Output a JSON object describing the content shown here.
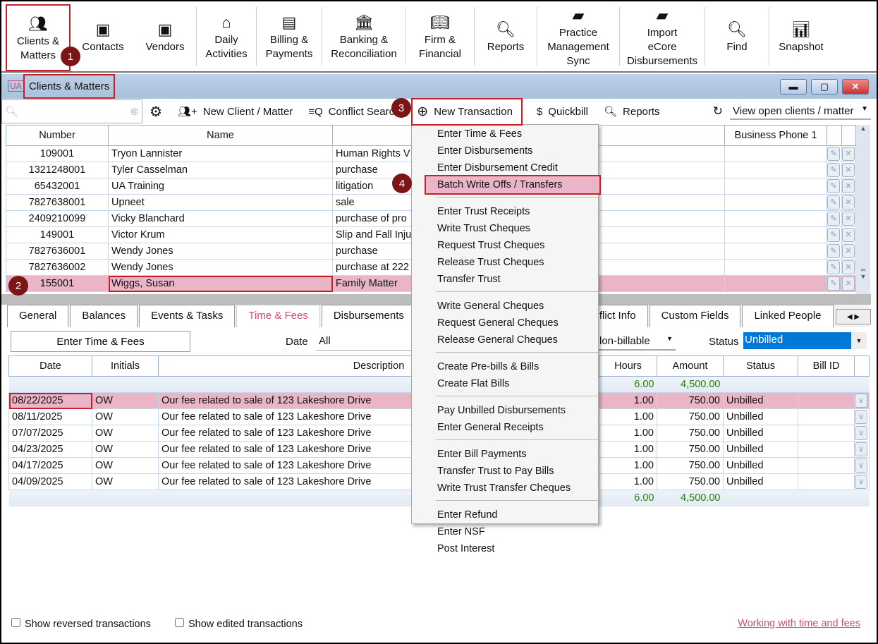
{
  "toolbar": {
    "items": [
      {
        "label": "Clients &\nMatters",
        "icon": "clients-icon"
      },
      {
        "label": "Contacts",
        "icon": "contacts-icon"
      },
      {
        "label": "Vendors",
        "icon": "vendors-icon"
      },
      {
        "label": "Daily\nActivities",
        "icon": "home-icon"
      },
      {
        "label": "Billing &\nPayments",
        "icon": "money-icon"
      },
      {
        "label": "Banking &\nReconciliation",
        "icon": "bank-icon"
      },
      {
        "label": "Firm &\nFinancial",
        "icon": "book-icon"
      },
      {
        "label": "Reports",
        "icon": "report-icon"
      },
      {
        "label": "Practice\nManagement\nSync",
        "icon": "dye-durham-logo"
      },
      {
        "label": "Import\neCore\nDisbursements",
        "icon": "dye-durham-logo"
      },
      {
        "label": "Find",
        "icon": "search-icon"
      },
      {
        "label": "Snapshot",
        "icon": "chart-icon"
      }
    ]
  },
  "window": {
    "title": "Clients & Matters"
  },
  "subtoolbar": {
    "search_placeholder": "",
    "new_client": "New Client / Matter",
    "conflict": "Conflict Search",
    "new_transaction": "New Transaction",
    "quickbill": "Quickbill",
    "reports": "Reports",
    "view": "View open clients / matter"
  },
  "clients": {
    "columns": [
      "Number",
      "Name",
      "",
      "Business Phone 1"
    ],
    "rows": [
      {
        "number": "109001",
        "name": "Tryon Lannister",
        "desc": "Human Rights V"
      },
      {
        "number": "1321248001",
        "name": "Tyler Casselman",
        "desc": "purchase"
      },
      {
        "number": "65432001",
        "name": "UA Training",
        "desc": "litigation"
      },
      {
        "number": "7827638001",
        "name": "Upneet",
        "desc": "sale"
      },
      {
        "number": "2409210099",
        "name": "Vicky Blanchard",
        "desc": "purchase of pro"
      },
      {
        "number": "149001",
        "name": "Victor Krum",
        "desc": "Slip and Fall Inju"
      },
      {
        "number": "7827636001",
        "name": "Wendy Jones",
        "desc": "purchase"
      },
      {
        "number": "7827636002",
        "name": "Wendy Jones",
        "desc": "purchase at 222"
      },
      {
        "number": "155001",
        "name": "Wiggs, Susan",
        "desc": "Family Matter"
      }
    ]
  },
  "menu": {
    "groups": [
      [
        "Enter Time & Fees",
        "Enter Disbursements",
        "Enter Disbursement Credit",
        "Batch Write Offs / Transfers"
      ],
      [
        "Enter Trust Receipts",
        "Write Trust Cheques",
        "Request Trust Cheques",
        "Release Trust Cheques",
        "Transfer Trust"
      ],
      [
        "Write General Cheques",
        "Request General Cheques",
        "Release General Cheques"
      ],
      [
        "Create Pre-bills & Bills",
        "Create Flat Bills"
      ],
      [
        "Pay Unbilled Disbursements",
        "Enter General Receipts"
      ],
      [
        "Enter Bill Payments",
        "Transfer Trust to Pay Bills",
        "Write Trust Transfer Cheques"
      ],
      [
        "Enter Refund",
        "Enter NSF",
        "Post Interest"
      ]
    ]
  },
  "tabs": [
    "General",
    "Balances",
    "Events & Tasks",
    "Time & Fees",
    "Disbursements",
    "flict Info",
    "Custom Fields",
    "Linked People"
  ],
  "filters": {
    "enter_button": "Enter Time & Fees",
    "date_label": "Date",
    "date_value": "All",
    "billable_value": "lon-billable",
    "status_label": "Status",
    "status_value": "Unbilled"
  },
  "fees": {
    "columns": [
      "Date",
      "Initials",
      "Description",
      "Hours",
      "Amount",
      "Status",
      "Bill ID"
    ],
    "total_hours": "6.00",
    "total_amount": "4,500.00",
    "rows": [
      {
        "date": "08/22/2025",
        "initials": "OW",
        "desc": "Our fee related to sale of 123 Lakeshore Drive",
        "hours": "1.00",
        "amount": "750.00",
        "status": "Unbilled"
      },
      {
        "date": "08/11/2025",
        "initials": "OW",
        "desc": "Our fee related to sale of 123 Lakeshore Drive",
        "hours": "1.00",
        "amount": "750.00",
        "status": "Unbilled"
      },
      {
        "date": "07/07/2025",
        "initials": "OW",
        "desc": "Our fee related to sale of 123 Lakeshore Drive",
        "hours": "1.00",
        "amount": "750.00",
        "status": "Unbilled"
      },
      {
        "date": "04/23/2025",
        "initials": "OW",
        "desc": "Our fee related to sale of 123 Lakeshore Drive",
        "hours": "1.00",
        "amount": "750.00",
        "status": "Unbilled"
      },
      {
        "date": "04/17/2025",
        "initials": "OW",
        "desc": "Our fee related to sale of 123 Lakeshore Drive",
        "hours": "1.00",
        "amount": "750.00",
        "status": "Unbilled"
      },
      {
        "date": "04/09/2025",
        "initials": "OW",
        "desc": "Our fee related to sale of 123 Lakeshore Drive",
        "hours": "1.00",
        "amount": "750.00",
        "status": "Unbilled"
      }
    ]
  },
  "footer": {
    "show_reversed": "Show reversed transactions",
    "show_edited": "Show edited transactions",
    "help_link": "Working with time and fees"
  },
  "badges": [
    "1",
    "2",
    "3",
    "4"
  ],
  "colors": {
    "highlight_row": "#eab5c6",
    "annotation": "#c8202a",
    "badge": "#7d1416",
    "active_tab": "#d9477a",
    "status_select": "#0078d7"
  }
}
